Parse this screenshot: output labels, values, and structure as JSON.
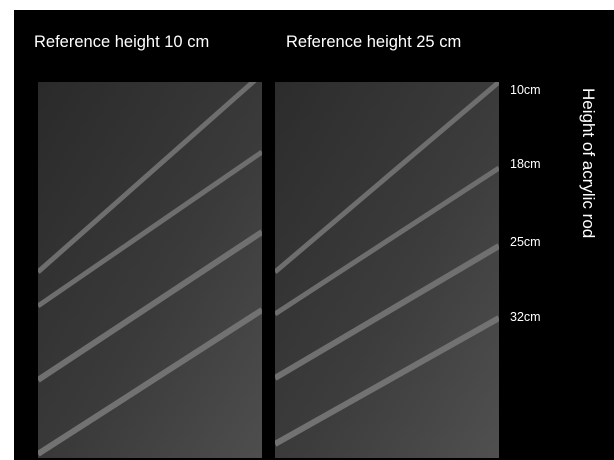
{
  "panels": [
    {
      "title": "Reference height 10 cm"
    },
    {
      "title": "Reference height 25 cm"
    }
  ],
  "rod_heights": [
    "10cm",
    "18cm",
    "25cm",
    "32cm"
  ],
  "axis_title": "Height of acrylic rod",
  "colors": {
    "figure_background": "#000000",
    "text": "#ffffff",
    "panel_dark": "#2c2c2c",
    "panel_light": "#4a4a4a",
    "rod_stripe": "#6e6e6e"
  }
}
